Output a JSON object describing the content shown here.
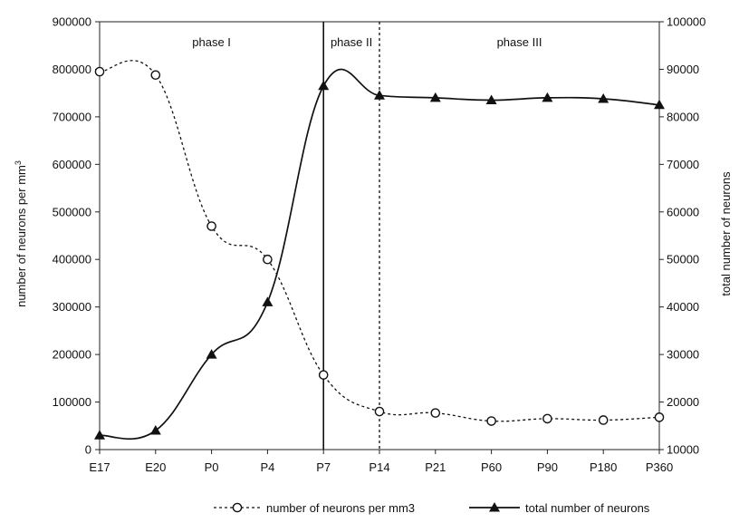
{
  "chart_data": {
    "type": "line",
    "categories": [
      "E17",
      "E20",
      "P0",
      "P4",
      "P7",
      "P14",
      "P21",
      "P60",
      "P90",
      "P180",
      "P360"
    ],
    "ylabel": "number of neurons per mm³",
    "y2label": "total number of  neurons",
    "ylim": [
      0,
      900000
    ],
    "y2lim": [
      10000,
      100000
    ],
    "y_ticks": [
      "0",
      "100000",
      "200000",
      "300000",
      "400000",
      "500000",
      "600000",
      "700000",
      "800000",
      "900000"
    ],
    "y2_ticks": [
      "10000",
      "20000",
      "30000",
      "40000",
      "50000",
      "60000",
      "70000",
      "80000",
      "90000",
      "100000"
    ],
    "grid": false,
    "legend_position": "bottom",
    "series": [
      {
        "name": "number of neurons per mm3",
        "axis": "left",
        "marker": "circle",
        "line_style": "dashed",
        "values": [
          795000,
          788000,
          470000,
          400000,
          157000,
          80000,
          77000,
          60000,
          65000,
          62000,
          68000
        ]
      },
      {
        "name": "total number of neurons",
        "axis": "right",
        "marker": "triangle",
        "line_style": "solid",
        "values": [
          13000,
          14000,
          30000,
          41000,
          86500,
          84500,
          84000,
          83500,
          84000,
          83800,
          82500
        ]
      }
    ],
    "annotations": {
      "phases": [
        {
          "label": "phase I",
          "start_category": "E17"
        },
        {
          "label": "phase II",
          "start_category": "P7"
        },
        {
          "label": "phase III",
          "start_category": "P14"
        }
      ],
      "dividers": [
        {
          "at_category": "P7",
          "style": "solid"
        },
        {
          "at_category": "P14",
          "style": "dashed"
        }
      ]
    }
  }
}
